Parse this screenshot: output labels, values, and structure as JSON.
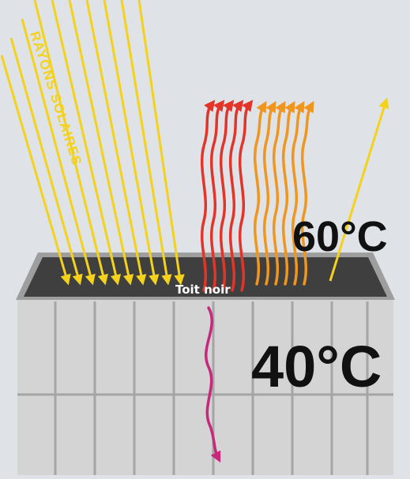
{
  "labels": {
    "rays": "RAYONS SOLAIRES",
    "roof": "Toit noir",
    "roof_temp": "60°C",
    "inside_temp": "40°C"
  },
  "colors": {
    "sky": "#dfe3e8",
    "sun_rays": "#f4d21c",
    "roof": "#3f3f3f",
    "roof_rim": "#9e9e9e",
    "wall": "#d4d4d4",
    "wall_lines": "#a5a5a5",
    "heat_emitted_hot": "#e3342a",
    "heat_emitted_warm": "#f0961e",
    "heat_conducted": "#c8287a",
    "reflected_ray": "#f4d21c"
  }
}
